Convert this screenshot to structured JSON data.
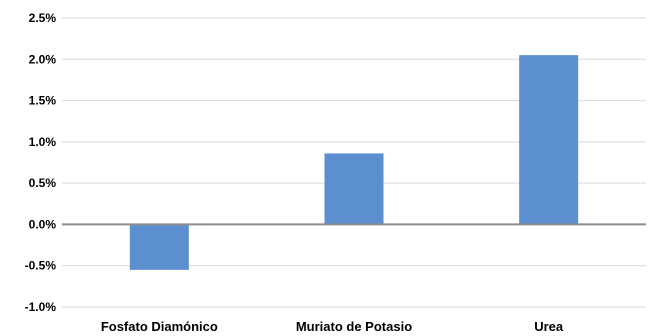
{
  "chart_data": {
    "type": "bar",
    "categories": [
      "Fosfato Diamónico",
      "Muriato de Potasio",
      "Urea"
    ],
    "values": [
      -0.55,
      0.86,
      2.05
    ],
    "title": "",
    "xlabel": "",
    "ylabel": "",
    "ylim": [
      -1.0,
      2.5
    ],
    "yticks": [
      -1.0,
      -0.5,
      0.0,
      0.5,
      1.0,
      1.5,
      2.0,
      2.5
    ],
    "ytick_labels": [
      "-1.0%",
      "-0.5%",
      "0.0%",
      "0.5%",
      "1.0%",
      "1.5%",
      "2.0%",
      "2.5%"
    ],
    "grid": true,
    "legend": "none",
    "colors": {
      "bar": "#5B8FD0",
      "grid": "#D9D9D9",
      "zero_line": "#8C8C8C"
    }
  }
}
